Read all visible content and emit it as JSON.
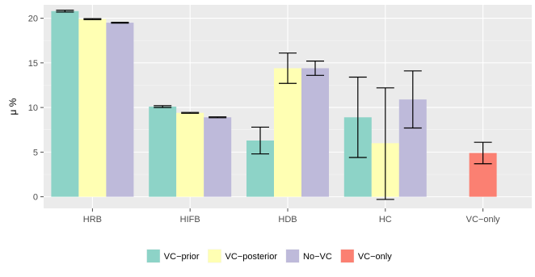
{
  "chart_data": {
    "type": "bar",
    "title": "",
    "xlabel": "",
    "ylabel": "μ %",
    "ylim": [
      -1.3,
      21.5
    ],
    "yticks": [
      0,
      5,
      10,
      15,
      20
    ],
    "categories": [
      "HRB",
      "HIFB",
      "HDB",
      "HC",
      "VC−only"
    ],
    "grid": true,
    "legend_position": "bottom",
    "series": [
      {
        "name": "VC−prior",
        "color": "#8dd3c7",
        "values": [
          20.8,
          10.1,
          6.3,
          8.9,
          null
        ],
        "error_low": [
          20.7,
          10.0,
          4.8,
          4.4,
          null
        ],
        "error_high": [
          20.9,
          10.2,
          7.8,
          13.4,
          null
        ]
      },
      {
        "name": "VC−posterior",
        "color": "#ffffb3",
        "values": [
          19.9,
          9.4,
          14.4,
          6.0,
          null
        ],
        "error_low": [
          19.85,
          9.35,
          12.7,
          -0.3,
          null
        ],
        "error_high": [
          19.95,
          9.45,
          16.1,
          12.2,
          null
        ]
      },
      {
        "name": "No−VC",
        "color": "#bebada",
        "values": [
          19.5,
          8.9,
          14.4,
          10.9,
          null
        ],
        "error_low": [
          19.45,
          8.85,
          13.6,
          7.7,
          null
        ],
        "error_high": [
          19.55,
          8.95,
          15.2,
          14.1,
          null
        ]
      },
      {
        "name": "VC−only",
        "color": "#fb8072",
        "values": [
          null,
          null,
          null,
          null,
          4.9
        ],
        "error_low": [
          null,
          null,
          null,
          null,
          3.7
        ],
        "error_high": [
          null,
          null,
          null,
          null,
          6.1
        ]
      }
    ]
  }
}
